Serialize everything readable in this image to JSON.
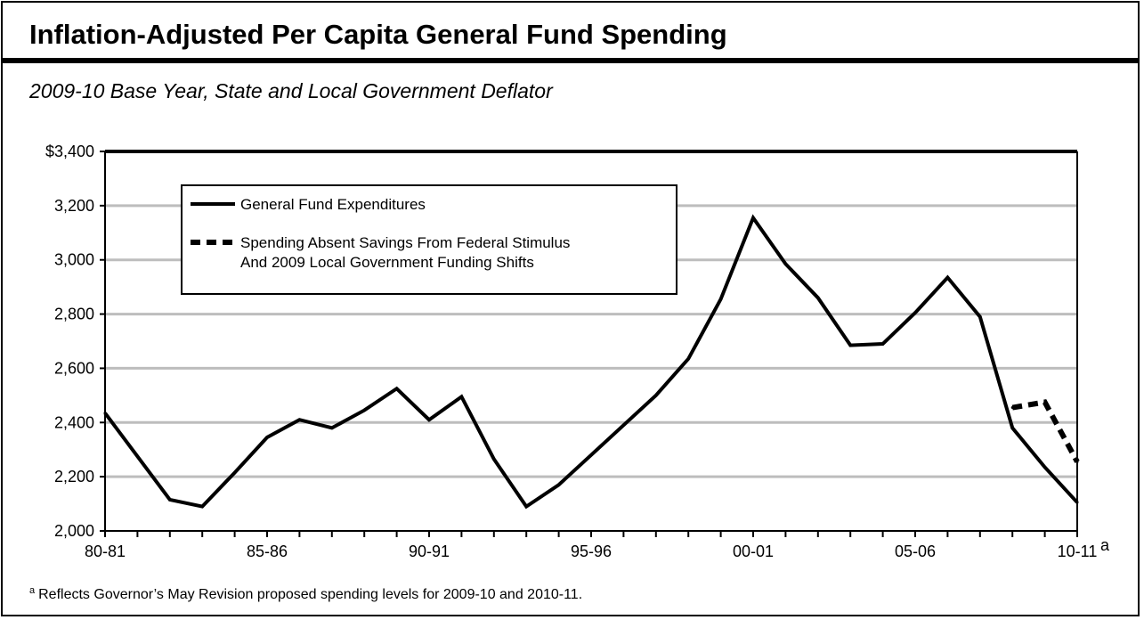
{
  "title": "Inflation-Adjusted Per Capita General Fund Spending",
  "subtitle": "2009-10 Base Year, State and Local Government Deflator",
  "footnote": {
    "marker": "a",
    "text": "Reflects Governor’s May Revision proposed spending levels for 2009-10 and 2010-11."
  },
  "chart_data": {
    "type": "line",
    "x": [
      "80-81",
      "81-82",
      "82-83",
      "83-84",
      "84-85",
      "85-86",
      "86-87",
      "87-88",
      "88-89",
      "89-90",
      "90-91",
      "91-92",
      "92-93",
      "93-94",
      "94-95",
      "95-96",
      "96-97",
      "97-98",
      "98-99",
      "99-00",
      "00-01",
      "01-02",
      "02-03",
      "03-04",
      "04-05",
      "05-06",
      "06-07",
      "07-08",
      "08-09",
      "09-10",
      "10-11"
    ],
    "x_tick_labels": [
      "80-81",
      "85-86",
      "90-91",
      "95-96",
      "00-01",
      "05-06",
      "10-11"
    ],
    "x_tick_label_suffix": "a",
    "y_tick_labels": [
      "$3,400",
      "3,200",
      "3,000",
      "2,800",
      "2,600",
      "2,400",
      "2,200",
      "2,000"
    ],
    "ylim": [
      2000,
      3400
    ],
    "y_ticks": [
      2000,
      2200,
      2400,
      2600,
      2800,
      3000,
      3200,
      3400
    ],
    "grid": true,
    "legend_position": "top-left",
    "series": [
      {
        "name": "General Fund Expenditures",
        "style": "solid",
        "color": "#000000",
        "values": [
          2435,
          2275,
          2115,
          2090,
          2215,
          2345,
          2410,
          2380,
          2445,
          2525,
          2410,
          2495,
          2265,
          2090,
          2170,
          2280,
          2390,
          2500,
          2635,
          2855,
          3155,
          2985,
          2860,
          2685,
          2690,
          2805,
          2935,
          2790,
          2380,
          2235,
          2105
        ]
      },
      {
        "name": "Spending Absent Savings From Federal Stimulus",
        "name_line2": "And 2009 Local Government Funding Shifts",
        "style": "dashed",
        "color": "#000000",
        "x": [
          "08-09",
          "09-10",
          "10-11"
        ],
        "values": [
          2455,
          2475,
          2255
        ]
      }
    ]
  }
}
